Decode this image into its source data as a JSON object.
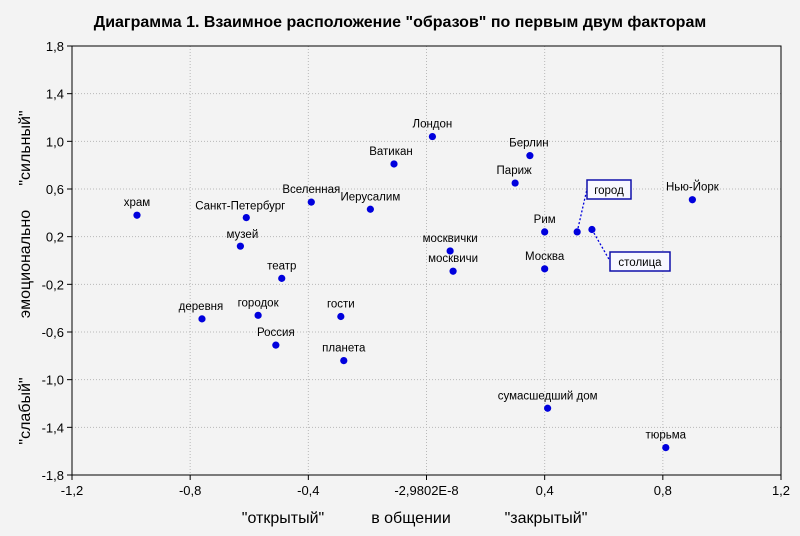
{
  "chart_data": {
    "type": "scatter",
    "title": "Диаграмма 1. Взаимное расположение \"образов\" по первым двум факторам",
    "xlabel": {
      "left": "\"открытый\"",
      "center": "в общении",
      "right": "\"закрытый\""
    },
    "ylabel": {
      "bottom": "\"слабый\"",
      "center": "эмоционально",
      "top": "\"сильный\""
    },
    "xlim": [
      -1.2,
      1.2
    ],
    "ylim": [
      -1.8,
      1.8
    ],
    "x_ticks": [
      {
        "value": -1.2,
        "label": "-1,2"
      },
      {
        "value": -0.8,
        "label": "-0,8"
      },
      {
        "value": -0.4,
        "label": "-0,4"
      },
      {
        "value": 0,
        "label": "-2,9802E-8"
      },
      {
        "value": 0.4,
        "label": "0,4"
      },
      {
        "value": 0.8,
        "label": "0,8"
      },
      {
        "value": 1.2,
        "label": "1,2"
      }
    ],
    "y_ticks": [
      {
        "value": 1.8,
        "label": "1,8"
      },
      {
        "value": 1.4,
        "label": "1,4"
      },
      {
        "value": 1.0,
        "label": "1,0"
      },
      {
        "value": 0.6,
        "label": "0,6"
      },
      {
        "value": 0.2,
        "label": "0,2"
      },
      {
        "value": -0.2,
        "label": "-0,2"
      },
      {
        "value": -0.6,
        "label": "-0,6"
      },
      {
        "value": -1.0,
        "label": "-1,0"
      },
      {
        "value": -1.4,
        "label": "-1,4"
      },
      {
        "value": -1.8,
        "label": "-1,8"
      }
    ],
    "grid": true,
    "marker_color": "#0000dd",
    "points": [
      {
        "label": "храм",
        "x": -0.98,
        "y": 0.38
      },
      {
        "label": "Санкт-Петербург",
        "x": -0.61,
        "y": 0.36
      },
      {
        "label": "музей",
        "x": -0.63,
        "y": 0.12
      },
      {
        "label": "Вселенная",
        "x": -0.39,
        "y": 0.49
      },
      {
        "label": "Иерусалим",
        "x": -0.19,
        "y": 0.43
      },
      {
        "label": "Ватикан",
        "x": -0.11,
        "y": 0.81
      },
      {
        "label": "Лондон",
        "x": 0.02,
        "y": 1.04
      },
      {
        "label": "Берлин",
        "x": 0.35,
        "y": 0.88
      },
      {
        "label": "Париж",
        "x": 0.3,
        "y": 0.65
      },
      {
        "label": "Нью-Йорк",
        "x": 0.9,
        "y": 0.51
      },
      {
        "label": "город",
        "x": 0.51,
        "y": 0.24,
        "boxed": true
      },
      {
        "label": "столица",
        "x": 0.56,
        "y": 0.26,
        "boxed": true
      },
      {
        "label": "Рим",
        "x": 0.4,
        "y": 0.24
      },
      {
        "label": "Москва",
        "x": 0.4,
        "y": -0.07
      },
      {
        "label": "москвички",
        "x": 0.08,
        "y": 0.08
      },
      {
        "label": "москвичи",
        "x": 0.09,
        "y": -0.09
      },
      {
        "label": "театр",
        "x": -0.49,
        "y": -0.15
      },
      {
        "label": "деревня",
        "x": -0.76,
        "y": -0.49
      },
      {
        "label": "городок",
        "x": -0.57,
        "y": -0.46
      },
      {
        "label": "гости",
        "x": -0.29,
        "y": -0.47
      },
      {
        "label": "Россия",
        "x": -0.51,
        "y": -0.71
      },
      {
        "label": "планета",
        "x": -0.28,
        "y": -0.84
      },
      {
        "label": "сумасшедший дом",
        "x": 0.41,
        "y": -1.24
      },
      {
        "label": "тюрьма",
        "x": 0.81,
        "y": -1.57
      }
    ]
  }
}
